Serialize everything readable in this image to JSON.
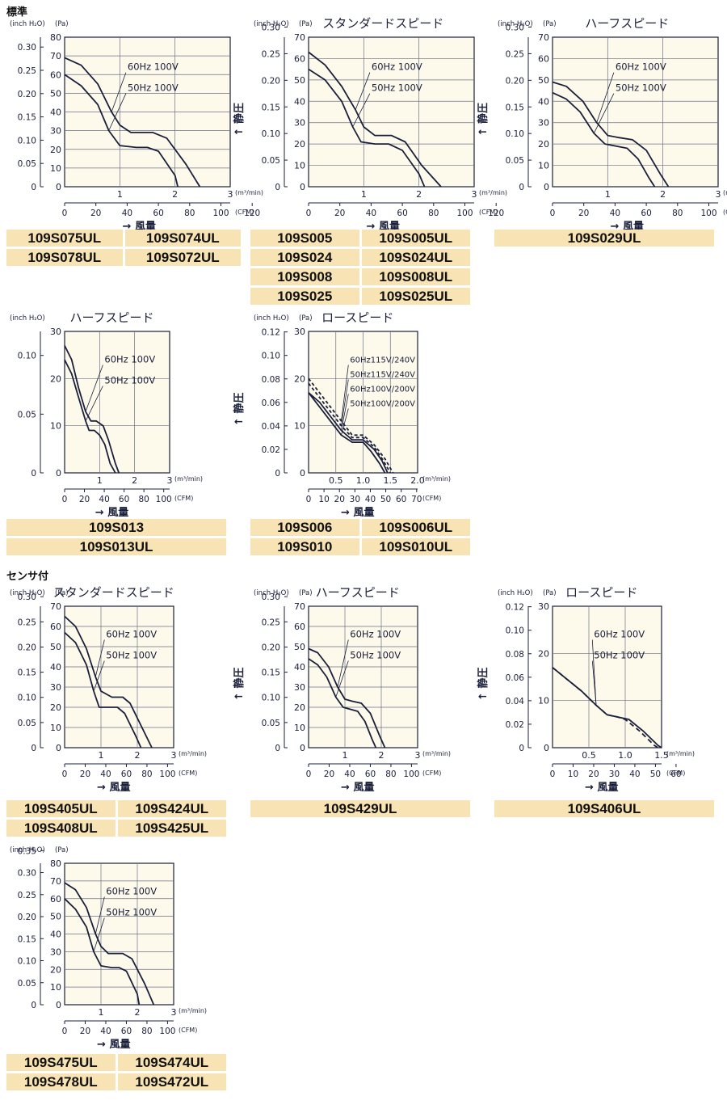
{
  "sections": {
    "standard": "標準",
    "sensor": "センサ付"
  },
  "charts": [
    {
      "id": "std-standard",
      "title": "",
      "y2_ticks": [
        "0",
        "0.05",
        "0.10",
        "0.15",
        "0.20",
        "0.25",
        "0.30"
      ],
      "y1_ticks": [
        "0",
        "10",
        "20",
        "30",
        "40",
        "50",
        "60",
        "70",
        "80"
      ],
      "x1_ticks": [
        "1",
        "2",
        "3"
      ],
      "x2_ticks": [
        "0",
        "20",
        "40",
        "60",
        "80",
        "100",
        "120"
      ],
      "y2_unit": "(inch H₂O)",
      "y1_unit": "(Pa)",
      "x1_unit": "(m³/min)",
      "x2_unit": "(CFM)",
      "ylabel": "↑ 静圧",
      "xlabel": "→ 風量",
      "labels": [
        "60Hz 100V",
        "50Hz 100V"
      ],
      "models": [
        "109S075UL",
        "109S074UL",
        "109S078UL",
        "109S072UL"
      ]
    },
    {
      "id": "std-standard-speed",
      "title": "スタンダードスピード",
      "y2_ticks": [
        "0",
        "0.05",
        "0.10",
        "0.15",
        "0.20",
        "0.25",
        "0.30"
      ],
      "y1_ticks": [
        "0",
        "10",
        "20",
        "30",
        "40",
        "50",
        "60",
        "70"
      ],
      "x1_ticks": [
        "1",
        "2",
        "3"
      ],
      "x2_ticks": [
        "0",
        "20",
        "40",
        "60",
        "80",
        "100",
        "120"
      ],
      "y2_unit": "(inch H₂O)",
      "y1_unit": "(Pa)",
      "x1_unit": "(m³/min)",
      "x2_unit": "(CFM)",
      "ylabel": "↑ 静圧",
      "xlabel": "→ 風量",
      "labels": [
        "60Hz 100V",
        "50Hz 100V"
      ],
      "models": [
        "109S005",
        "109S005UL",
        "109S024",
        "109S024UL",
        "109S008",
        "109S008UL",
        "109S025",
        "109S025UL"
      ]
    },
    {
      "id": "std-half-speed-a",
      "title": "ハーフスピード",
      "y2_ticks": [
        "0",
        "0.05",
        "0.10",
        "0.15",
        "0.20",
        "0.25",
        "0.30"
      ],
      "y1_ticks": [
        "0",
        "10",
        "20",
        "30",
        "40",
        "50",
        "60",
        "70"
      ],
      "x1_ticks": [
        "1",
        "2",
        "3"
      ],
      "x2_ticks": [
        "0",
        "20",
        "40",
        "60",
        "80",
        "100",
        "120"
      ],
      "y2_unit": "(inch H₂O)",
      "y1_unit": "(Pa)",
      "x1_unit": "(m³/min)",
      "x2_unit": "(CFM)",
      "ylabel": "↑ 静圧",
      "xlabel": "→ 風量",
      "labels": [
        "60Hz 100V",
        "50Hz 100V"
      ],
      "models": [
        "109S029UL"
      ]
    },
    {
      "id": "std-half-speed-b",
      "title": "ハーフスピード",
      "y2_ticks": [
        "0",
        "0.05",
        "0.10"
      ],
      "y1_ticks": [
        "0",
        "10",
        "20",
        "30"
      ],
      "x1_ticks": [
        "1",
        "2",
        "3"
      ],
      "x2_ticks": [
        "0",
        "20",
        "40",
        "60",
        "80",
        "100"
      ],
      "y2_unit": "(inch H₂O)",
      "y1_unit": "",
      "x1_unit": "(m³/min)",
      "x2_unit": "(CFM)",
      "ylabel": "↑ 静圧",
      "xlabel": "→ 風量",
      "labels": [
        "60Hz 100V",
        "50Hz 100V"
      ],
      "models": [
        "109S013",
        "109S013UL"
      ]
    },
    {
      "id": "std-low-speed",
      "title": "ロースピード",
      "y2_ticks": [
        "0",
        "0.02",
        "0.04",
        "0.06",
        "0.08",
        "0.10",
        "0.12"
      ],
      "y1_ticks": [
        "0",
        "10",
        "20",
        "30"
      ],
      "x1_ticks": [
        "0.5",
        "1.0",
        "1.5",
        "2.0"
      ],
      "x2_ticks": [
        "0",
        "10",
        "20",
        "30",
        "40",
        "50",
        "60",
        "70"
      ],
      "y2_unit": "(inch H₂O)",
      "y1_unit": "(Pa)",
      "x1_unit": "(m³/min)",
      "x2_unit": "(CFM)",
      "ylabel": "↑ 静圧",
      "xlabel": "→ 風量",
      "labels": [
        "60Hz115V/240V",
        "50Hz115V/240V",
        "60Hz100V/200V",
        "50Hz100V/200V"
      ],
      "models": [
        "109S006",
        "109S006UL",
        "109S010",
        "109S010UL"
      ]
    },
    {
      "id": "sensor-standard-speed",
      "title": "スタンダードスピード",
      "y2_ticks": [
        "0",
        "0.05",
        "0.10",
        "0.15",
        "0.20",
        "0.25",
        "0.30"
      ],
      "y1_ticks": [
        "0",
        "10",
        "20",
        "30",
        "40",
        "50",
        "60",
        "70"
      ],
      "x1_ticks": [
        "1",
        "2",
        "3"
      ],
      "x2_ticks": [
        "0",
        "20",
        "40",
        "60",
        "80",
        "100"
      ],
      "y2_unit": "(inch H₂O)",
      "y1_unit": "(Pa)",
      "x1_unit": "(m³/min)",
      "x2_unit": "(CFM)",
      "ylabel": "↑ 静圧",
      "xlabel": "→ 風量",
      "labels": [
        "60Hz 100V",
        "50Hz 100V"
      ],
      "models": [
        "109S405UL",
        "109S424UL",
        "109S408UL",
        "109S425UL"
      ]
    },
    {
      "id": "sensor-half-speed",
      "title": "ハーフスピード",
      "y2_ticks": [
        "0",
        "0.05",
        "0.10",
        "0.15",
        "0.20",
        "0.25",
        "0.30"
      ],
      "y1_ticks": [
        "0",
        "10",
        "20",
        "30",
        "40",
        "50",
        "60",
        "70"
      ],
      "x1_ticks": [
        "1",
        "2",
        "3"
      ],
      "x2_ticks": [
        "0",
        "20",
        "40",
        "60",
        "80",
        "100"
      ],
      "y2_unit": "(inch H₂O)",
      "y1_unit": "(Pa)",
      "x1_unit": "(m³/min)",
      "x2_unit": "(CFM)",
      "ylabel": "↑ 静圧",
      "xlabel": "→ 風量",
      "labels": [
        "60Hz 100V",
        "50Hz 100V"
      ],
      "models": [
        "109S429UL"
      ]
    },
    {
      "id": "sensor-low-speed",
      "title": "ロースピード",
      "y2_ticks": [
        "0",
        "0.02",
        "0.04",
        "0.06",
        "0.08",
        "0.10",
        "0.12"
      ],
      "y1_ticks": [
        "0",
        "10",
        "20",
        "30"
      ],
      "x1_ticks": [
        "0.5",
        "1.0",
        "1.5"
      ],
      "x2_ticks": [
        "0",
        "10",
        "20",
        "30",
        "40",
        "50",
        "60"
      ],
      "y2_unit": "(inch H₂O)",
      "y1_unit": "(Pa)",
      "x1_unit": "(m³/min)",
      "x2_unit": "(CFM)",
      "ylabel": "↑ 静圧",
      "xlabel": "→ 風量",
      "labels": [
        "60Hz 100V",
        "50Hz 100V"
      ],
      "models": [
        "109S406UL"
      ]
    },
    {
      "id": "sensor-standard",
      "title": "",
      "y2_ticks": [
        "0",
        "0.05",
        "0.10",
        "0.15",
        "0.20",
        "0.25",
        "0.30",
        "0.35"
      ],
      "y1_ticks": [
        "0",
        "10",
        "20",
        "30",
        "40",
        "50",
        "60",
        "70",
        "80"
      ],
      "x1_ticks": [
        "1",
        "2",
        "3"
      ],
      "x2_ticks": [
        "0",
        "20",
        "40",
        "60",
        "80",
        "100"
      ],
      "y2_unit": "(inch H₂O)",
      "y1_unit": "(Pa)",
      "x1_unit": "(m³/min)",
      "x2_unit": "(CFM)",
      "ylabel": "↑ 静圧",
      "xlabel": "→ 風量",
      "labels": [
        "60Hz 100V",
        "50Hz 100V"
      ],
      "models": [
        "109S475UL",
        "109S474UL",
        "109S478UL",
        "109S472UL"
      ]
    }
  ],
  "chart_data": [
    {
      "type": "line",
      "xlabel": "風量 (m³/min)",
      "ylabel": "静圧 (Pa)",
      "xlim": [
        0,
        3
      ],
      "ylim": [
        0,
        80
      ],
      "series": [
        {
          "name": "60Hz 100V",
          "x": [
            0,
            0.3,
            0.6,
            0.85,
            1.0,
            1.2,
            1.6,
            1.85,
            2.2,
            2.45
          ],
          "y": [
            69,
            65,
            55,
            40,
            33,
            29,
            29,
            26,
            12,
            0
          ]
        },
        {
          "name": "50Hz 100V",
          "x": [
            0,
            0.3,
            0.6,
            0.8,
            1.0,
            1.3,
            1.5,
            1.7,
            2.0,
            2.05
          ],
          "y": [
            60,
            54,
            44,
            30,
            22,
            21,
            21,
            19,
            6,
            0
          ]
        }
      ]
    },
    {
      "type": "line",
      "xlabel": "風量 (m³/min)",
      "ylabel": "静圧 (Pa)",
      "xlim": [
        0,
        3
      ],
      "ylim": [
        0,
        70
      ],
      "series": [
        {
          "name": "60Hz 100V",
          "x": [
            0,
            0.3,
            0.6,
            0.85,
            1.0,
            1.2,
            1.5,
            1.75,
            2.05,
            2.4
          ],
          "y": [
            63,
            57,
            47,
            36,
            28,
            24,
            24,
            21,
            10,
            0
          ]
        },
        {
          "name": "50Hz 100V",
          "x": [
            0,
            0.3,
            0.6,
            0.8,
            0.95,
            1.2,
            1.45,
            1.7,
            2.0,
            2.1
          ],
          "y": [
            55,
            50,
            40,
            28,
            21,
            20,
            20,
            17,
            6,
            0
          ]
        }
      ]
    },
    {
      "type": "line",
      "xlabel": "風量 (m³/min)",
      "ylabel": "静圧 (Pa)",
      "xlim": [
        0,
        3
      ],
      "ylim": [
        0,
        70
      ],
      "series": [
        {
          "name": "60Hz 100V",
          "x": [
            0,
            0.25,
            0.55,
            0.8,
            1.0,
            1.2,
            1.45,
            1.7,
            1.95,
            2.1
          ],
          "y": [
            49,
            47,
            40,
            30,
            24,
            23,
            22,
            17,
            6,
            0
          ]
        },
        {
          "name": "50Hz 100V",
          "x": [
            0,
            0.25,
            0.5,
            0.75,
            0.95,
            1.15,
            1.35,
            1.55,
            1.75,
            1.85
          ],
          "y": [
            44,
            41,
            35,
            25,
            20,
            19,
            18,
            13,
            4,
            0
          ]
        }
      ]
    },
    {
      "type": "line",
      "xlabel": "風量 (m³/min)",
      "ylabel": "静圧 (Pa)",
      "xlim": [
        0,
        3
      ],
      "ylim": [
        0,
        30
      ],
      "series": [
        {
          "name": "60Hz 100V",
          "x": [
            0,
            0.2,
            0.4,
            0.6,
            0.75,
            0.9,
            1.1,
            1.25,
            1.45,
            1.55
          ],
          "y": [
            27,
            24,
            18,
            13,
            11,
            11,
            10,
            7,
            2,
            0
          ]
        },
        {
          "name": "50Hz 100V",
          "x": [
            0,
            0.2,
            0.4,
            0.6,
            0.7,
            0.85,
            1.0,
            1.15,
            1.3,
            1.45
          ],
          "y": [
            24,
            21,
            16,
            11,
            9,
            9,
            8,
            6,
            2,
            0
          ]
        }
      ]
    },
    {
      "type": "line",
      "xlabel": "風量 (m³/min)",
      "ylabel": "静圧 (Pa)",
      "xlim": [
        0,
        2.0
      ],
      "ylim": [
        0,
        30
      ],
      "series": [
        {
          "name": "60Hz115V/240V",
          "x": [
            0,
            0.2,
            0.4,
            0.6,
            0.8,
            1.0,
            1.2,
            1.4,
            1.55
          ],
          "y": [
            20,
            17,
            14,
            11,
            8,
            8,
            6,
            3,
            0
          ]
        },
        {
          "name": "50Hz115V/240V",
          "x": [
            0,
            0.2,
            0.4,
            0.6,
            0.8,
            1.0,
            1.2,
            1.35,
            1.5
          ],
          "y": [
            19,
            16,
            13,
            10,
            7.5,
            7.5,
            5.5,
            3,
            0
          ]
        },
        {
          "name": "60Hz100V/200V",
          "x": [
            0,
            0.2,
            0.4,
            0.6,
            0.8,
            1.0,
            1.2,
            1.35,
            1.45
          ],
          "y": [
            17,
            15,
            12,
            9,
            7,
            7,
            5,
            2.5,
            0
          ]
        },
        {
          "name": "50Hz100V/200V",
          "x": [
            0,
            0.2,
            0.4,
            0.6,
            0.8,
            1.0,
            1.15,
            1.3,
            1.4
          ],
          "y": [
            17,
            14,
            11,
            8,
            6.5,
            6.5,
            4.5,
            2,
            0
          ]
        }
      ]
    },
    {
      "type": "line",
      "xlabel": "風量 (m³/min)",
      "ylabel": "静圧 (Pa)",
      "xlim": [
        0,
        3
      ],
      "ylim": [
        0,
        70
      ],
      "series": [
        {
          "name": "60Hz 100V",
          "x": [
            0,
            0.3,
            0.6,
            0.85,
            1.0,
            1.3,
            1.6,
            1.8,
            2.1,
            2.4
          ],
          "y": [
            65,
            60,
            49,
            35,
            28,
            25,
            25,
            22,
            11,
            0
          ]
        },
        {
          "name": "50Hz 100V",
          "x": [
            0,
            0.3,
            0.6,
            0.8,
            0.95,
            1.2,
            1.45,
            1.65,
            1.95,
            2.1
          ],
          "y": [
            57,
            52,
            41,
            28,
            20,
            20,
            20,
            17,
            6,
            0
          ]
        }
      ]
    },
    {
      "type": "line",
      "xlabel": "風量 (m³/min)",
      "ylabel": "静圧 (Pa)",
      "xlim": [
        0,
        3
      ],
      "ylim": [
        0,
        70
      ],
      "series": [
        {
          "name": "60Hz 100V",
          "x": [
            0,
            0.25,
            0.55,
            0.8,
            1.0,
            1.2,
            1.45,
            1.7,
            1.95,
            2.1
          ],
          "y": [
            49,
            47,
            40,
            30,
            24,
            23,
            22,
            17,
            6,
            0
          ]
        },
        {
          "name": "50Hz 100V",
          "x": [
            0,
            0.25,
            0.5,
            0.75,
            0.95,
            1.15,
            1.35,
            1.55,
            1.75,
            1.85
          ],
          "y": [
            44,
            41,
            35,
            25,
            20,
            19,
            18,
            13,
            4,
            0
          ]
        }
      ]
    },
    {
      "type": "line",
      "xlabel": "風量 (m³/min)",
      "ylabel": "静圧 (Pa)",
      "xlim": [
        0,
        1.5
      ],
      "ylim": [
        0,
        30
      ],
      "series": [
        {
          "name": "60Hz 100V",
          "x": [
            0,
            0.2,
            0.4,
            0.6,
            0.75,
            0.9,
            1.05,
            1.25,
            1.45,
            1.5
          ],
          "y": [
            17,
            14.5,
            12,
            9,
            7,
            6.5,
            6,
            3.5,
            0.5,
            0
          ]
        },
        {
          "name": "50Hz 100V",
          "x": [
            0,
            0.2,
            0.4,
            0.6,
            0.75,
            0.9,
            1.0,
            1.2,
            1.4,
            1.45
          ],
          "y": [
            17,
            14.5,
            12,
            9,
            7,
            6.5,
            6,
            3.5,
            0.5,
            0
          ]
        }
      ]
    },
    {
      "type": "line",
      "xlabel": "風量 (m³/min)",
      "ylabel": "静圧 (Pa)",
      "xlim": [
        0,
        3
      ],
      "ylim": [
        0,
        80
      ],
      "series": [
        {
          "name": "60Hz 100V",
          "x": [
            0,
            0.3,
            0.6,
            0.85,
            1.0,
            1.2,
            1.6,
            1.85,
            2.2,
            2.45
          ],
          "y": [
            69,
            65,
            55,
            40,
            33,
            29,
            29,
            26,
            12,
            0
          ]
        },
        {
          "name": "50Hz 100V",
          "x": [
            0,
            0.3,
            0.6,
            0.8,
            1.0,
            1.3,
            1.5,
            1.7,
            2.0,
            2.05
          ],
          "y": [
            60,
            54,
            44,
            30,
            22,
            21,
            21,
            19,
            6,
            0
          ]
        }
      ]
    }
  ]
}
